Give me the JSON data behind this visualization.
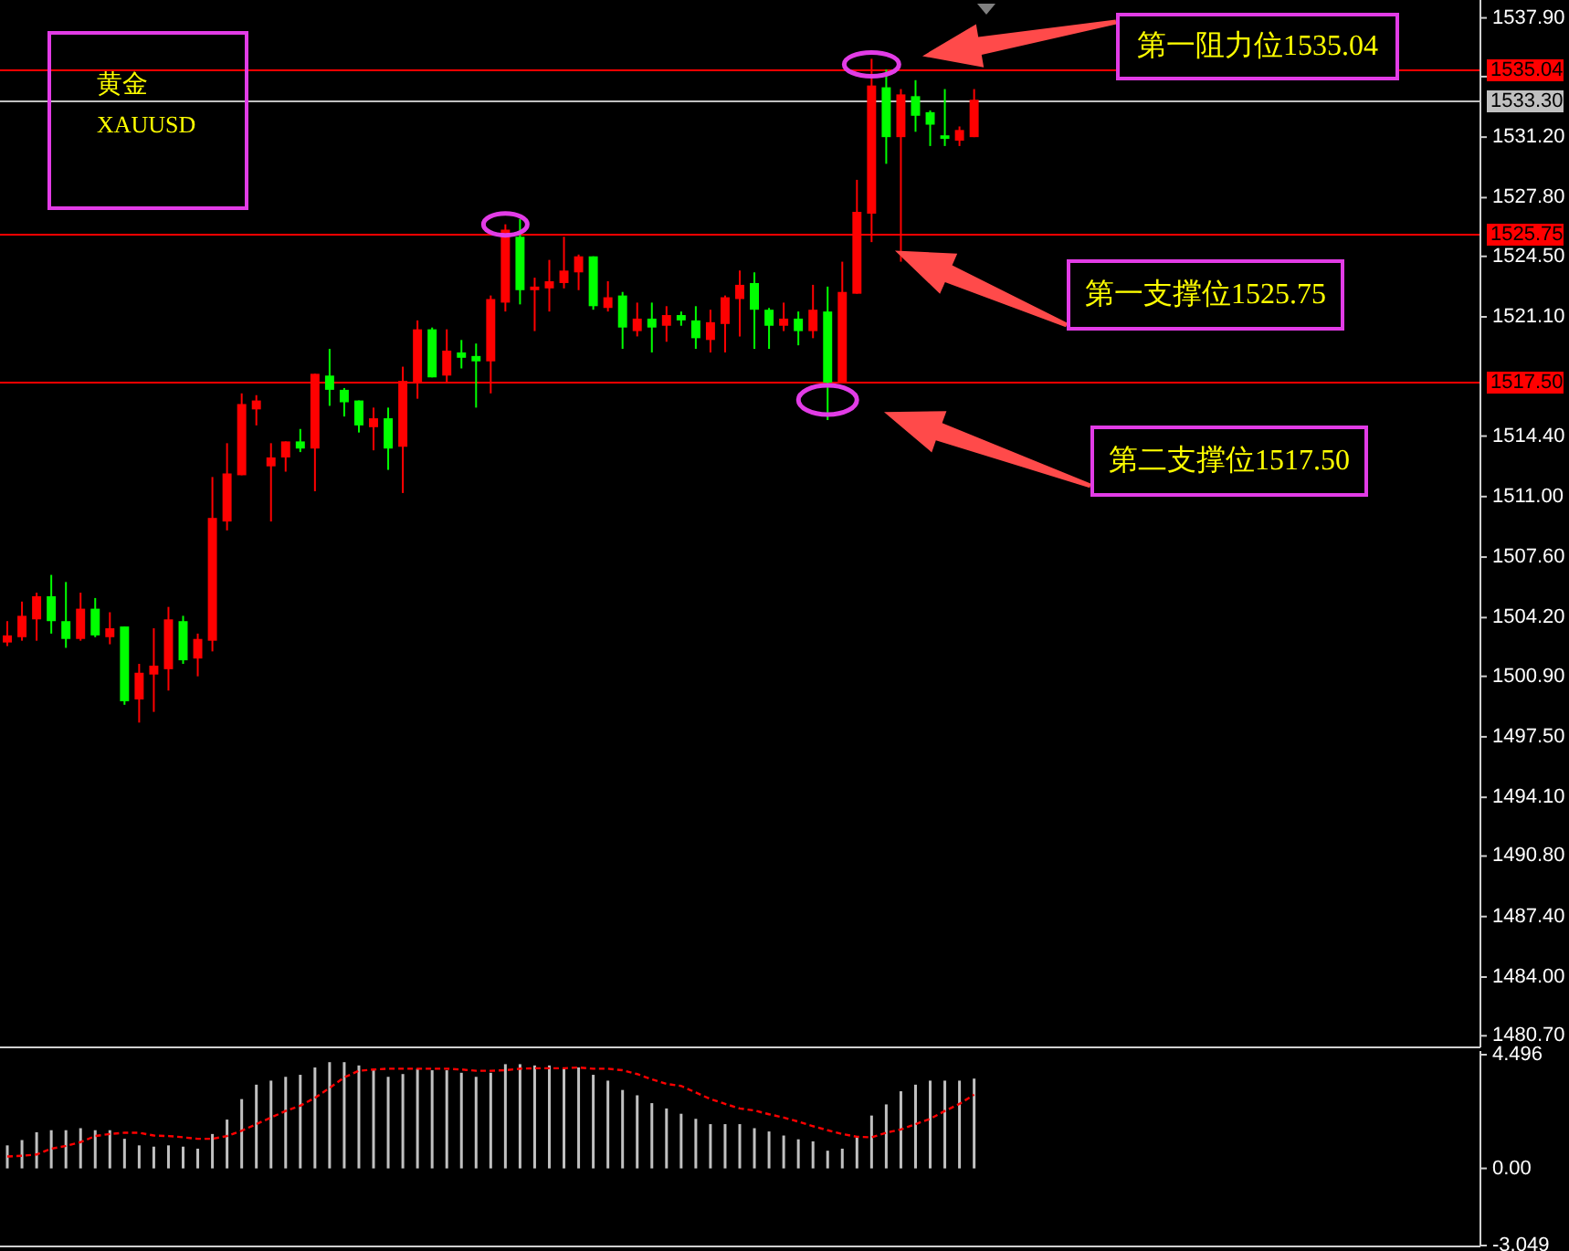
{
  "chart_data": [
    {
      "type": "candlestick",
      "title": "黄金",
      "subtitle": "XAUUSD",
      "categories": [
        null,
        null,
        null,
        null,
        null,
        null,
        null,
        null,
        null,
        null,
        null,
        null,
        null,
        null,
        null,
        null,
        null,
        null,
        null,
        null,
        null,
        null,
        null,
        null,
        null,
        null,
        null,
        null,
        null,
        null,
        null,
        null,
        null,
        null,
        null,
        null,
        null,
        null,
        null,
        null,
        null,
        null,
        null,
        null,
        null,
        null,
        null,
        null,
        null,
        null,
        null,
        null,
        null,
        null,
        null,
        null,
        null,
        null,
        null,
        null,
        null,
        null,
        null,
        null,
        null,
        null,
        null,
        null,
        null,
        null,
        null,
        null,
        null,
        null,
        null,
        null,
        null,
        null,
        null,
        null,
        null,
        null,
        null,
        null,
        null,
        null,
        null,
        null,
        null,
        null,
        null,
        null,
        null,
        null,
        null,
        null,
        null,
        null,
        null,
        null,
        null
      ],
      "ohlc": [
        [
          1502.8,
          1504.0,
          1502.6,
          1503.2
        ],
        [
          1503.1,
          1505.1,
          1502.9,
          1504.3
        ],
        [
          1504.1,
          1505.6,
          1502.9,
          1505.4
        ],
        [
          1505.4,
          1506.6,
          1503.3,
          1504.0
        ],
        [
          1504.0,
          1506.2,
          1502.5,
          1503.0
        ],
        [
          1503.0,
          1505.6,
          1502.9,
          1504.7
        ],
        [
          1504.7,
          1505.3,
          1503.1,
          1503.2
        ],
        [
          1503.1,
          1504.5,
          1502.7,
          1503.6
        ],
        [
          1503.7,
          1503.7,
          1499.3,
          1499.5
        ],
        [
          1499.6,
          1501.6,
          1498.3,
          1501.1
        ],
        [
          1501.0,
          1503.6,
          1498.9,
          1501.5
        ],
        [
          1501.3,
          1504.8,
          1500.1,
          1504.1
        ],
        [
          1504.0,
          1504.3,
          1501.6,
          1501.8
        ],
        [
          1501.9,
          1503.3,
          1500.9,
          1503.0
        ],
        [
          1502.9,
          1512.1,
          1502.3,
          1509.8
        ],
        [
          1509.6,
          1514.0,
          1509.1,
          1512.3
        ],
        [
          1512.2,
          1516.8,
          1512.2,
          1516.2
        ],
        [
          1515.9,
          1516.7,
          1515.0,
          1516.4
        ],
        [
          1512.7,
          1514.0,
          1509.6,
          1513.2
        ],
        [
          1513.2,
          1514.1,
          1512.4,
          1514.1
        ],
        [
          1514.1,
          1514.8,
          1513.5,
          1513.7
        ],
        [
          1513.7,
          1517.9,
          1511.3,
          1517.9
        ],
        [
          1517.8,
          1519.3,
          1516.1,
          1517.0
        ],
        [
          1517.0,
          1517.1,
          1515.5,
          1516.3
        ],
        [
          1516.4,
          1516.4,
          1514.6,
          1515.0
        ],
        [
          1514.9,
          1516.0,
          1513.6,
          1515.4
        ],
        [
          1515.4,
          1516.0,
          1512.5,
          1513.7
        ],
        [
          1513.8,
          1518.3,
          1511.2,
          1517.5
        ],
        [
          1517.4,
          1520.9,
          1516.5,
          1520.4
        ],
        [
          1520.4,
          1520.5,
          1517.7,
          1517.7
        ],
        [
          1517.8,
          1520.4,
          1517.4,
          1519.2
        ],
        [
          1519.1,
          1519.8,
          1518.2,
          1518.8
        ],
        [
          1518.9,
          1519.6,
          1516.0,
          1518.6
        ],
        [
          1518.6,
          1522.3,
          1516.8,
          1522.1
        ],
        [
          1521.9,
          1526.3,
          1521.4,
          1526.0
        ],
        [
          1525.6,
          1526.6,
          1521.8,
          1522.6
        ],
        [
          1522.6,
          1523.3,
          1520.3,
          1522.8
        ],
        [
          1522.7,
          1524.3,
          1521.4,
          1523.1
        ],
        [
          1523.0,
          1525.6,
          1522.7,
          1523.7
        ],
        [
          1523.6,
          1524.6,
          1522.6,
          1524.5
        ],
        [
          1524.5,
          1524.5,
          1521.5,
          1521.7
        ],
        [
          1521.6,
          1523.1,
          1521.4,
          1522.2
        ],
        [
          1522.3,
          1522.5,
          1519.3,
          1520.5
        ],
        [
          1520.3,
          1521.9,
          1520.0,
          1521.0
        ],
        [
          1521.0,
          1521.9,
          1519.1,
          1520.5
        ],
        [
          1520.6,
          1521.7,
          1519.7,
          1521.2
        ],
        [
          1521.2,
          1521.4,
          1520.6,
          1520.9
        ],
        [
          1520.9,
          1521.7,
          1519.3,
          1519.9
        ],
        [
          1519.8,
          1521.5,
          1519.1,
          1520.8
        ],
        [
          1520.7,
          1522.3,
          1519.1,
          1522.2
        ],
        [
          1522.1,
          1523.7,
          1520.0,
          1522.9
        ],
        [
          1523.0,
          1523.6,
          1519.3,
          1521.5
        ],
        [
          1521.5,
          1521.6,
          1519.3,
          1520.6
        ],
        [
          1520.6,
          1521.9,
          1520.3,
          1521.0
        ],
        [
          1521.0,
          1521.4,
          1519.5,
          1520.3
        ],
        [
          1520.3,
          1522.9,
          1519.9,
          1521.5
        ],
        [
          1521.4,
          1522.8,
          1515.3,
          1517.4
        ],
        [
          1517.4,
          1524.2,
          1517.4,
          1522.5
        ],
        [
          1522.4,
          1528.8,
          1522.4,
          1527.0
        ],
        [
          1526.9,
          1535.6,
          1525.3,
          1534.1
        ],
        [
          1534.0,
          1535.0,
          1529.7,
          1531.2
        ],
        [
          1531.2,
          1533.9,
          1524.2,
          1533.6
        ],
        [
          1533.5,
          1534.4,
          1531.5,
          1532.4
        ],
        [
          1532.6,
          1532.7,
          1530.7,
          1531.9
        ],
        [
          1531.3,
          1533.9,
          1530.7,
          1531.1
        ],
        [
          1531.0,
          1531.8,
          1530.7,
          1531.6
        ],
        [
          1531.2,
          1533.9,
          1531.2,
          1533.3
        ],
        null,
        null,
        null,
        null,
        null,
        null,
        null,
        null,
        null,
        null,
        null,
        null,
        null,
        null,
        null,
        null,
        null,
        null,
        null,
        null,
        null,
        null,
        null,
        null,
        null,
        null,
        null,
        null,
        null,
        null,
        null,
        null,
        null,
        null
      ],
      "colors": [
        "#ff0000",
        "#ff0000",
        "#ff0000",
        "#00ff00",
        "#00ff00",
        "#ff0000",
        "#00ff00",
        "#ff0000",
        "#00ff00",
        "#ff0000",
        "#ff0000",
        "#ff0000",
        "#00ff00",
        "#ff0000",
        "#ff0000",
        "#ff0000",
        "#ff0000",
        "#ff0000",
        "#ff0000",
        "#ff0000",
        "#00ff00",
        "#ff0000",
        "#00ff00",
        "#00ff00",
        "#00ff00",
        "#ff0000",
        "#00ff00",
        "#ff0000",
        "#ff0000",
        "#00ff00",
        "#ff0000",
        "#00ff00",
        "#00ff00",
        "#ff0000",
        "#ff0000",
        "#00ff00",
        "#ff0000",
        "#ff0000",
        "#ff0000",
        "#ff0000",
        "#00ff00",
        "#ff0000",
        "#00ff00",
        "#ff0000",
        "#00ff00",
        "#ff0000",
        "#00ff00",
        "#00ff00",
        "#ff0000",
        "#ff0000",
        "#ff0000",
        "#00ff00",
        "#00ff00",
        "#ff0000",
        "#00ff00",
        "#ff0000",
        "#00ff00",
        "#ff0000",
        "#ff0000",
        "#ff0000",
        "#00ff00",
        "#ff0000",
        "#00ff00",
        "#00ff00",
        "#00ff00",
        "#ff0000",
        "#ff0000",
        null,
        null,
        null,
        null,
        null,
        null,
        null,
        null,
        null,
        null,
        null,
        null,
        null,
        null,
        null,
        null,
        null,
        null,
        null,
        null,
        null,
        null,
        null,
        null,
        null,
        null,
        null,
        null,
        null,
        null,
        null,
        null,
        null,
        null
      ],
      "ylim": [
        1480.1,
        1538.7
      ],
      "yticks": [
        {
          "value": 1537.9,
          "label": "1537.90"
        },
        {
          "value": 1534.6,
          "label": null
        },
        {
          "value": 1531.2,
          "label": "1531.20"
        },
        {
          "value": 1527.8,
          "label": "1527.80"
        },
        {
          "value": 1524.5,
          "label": "1524.50"
        },
        {
          "value": 1521.1,
          "label": "1521.10"
        },
        {
          "value": 1514.4,
          "label": "1514.40"
        },
        {
          "value": 1511.0,
          "label": "1511.00"
        },
        {
          "value": 1507.6,
          "label": "1507.60"
        },
        {
          "value": 1504.2,
          "label": "1504.20"
        },
        {
          "value": 1500.9,
          "label": "1500.90"
        },
        {
          "value": 1497.5,
          "label": "1497.50"
        },
        {
          "value": 1494.1,
          "label": "1494.10"
        },
        {
          "value": 1490.8,
          "label": "1490.80"
        },
        {
          "value": 1487.4,
          "label": "1487.40"
        },
        {
          "value": 1484.0,
          "label": "1484.00"
        },
        {
          "value": 1480.7,
          "label": "1480.70"
        }
      ],
      "ref_lines": [
        {
          "axis": "y",
          "value": 1535.04,
          "label": "1535.04",
          "color": "#ff0000"
        },
        {
          "axis": "y",
          "value": 1533.3,
          "label": "1533.30",
          "color": "#c0c0c0"
        },
        {
          "axis": "y",
          "value": 1525.75,
          "label": "1525.75",
          "color": "#ff0000"
        },
        {
          "axis": "y",
          "value": 1517.5,
          "label": "1517.50",
          "color": "#ff0000"
        }
      ],
      "annotations": [
        {
          "text": "第一阻力位1535.04",
          "y": 1535.04
        },
        {
          "text": "第一支撑位1525.75",
          "y": 1525.75
        },
        {
          "text": "第二支撑位1517.50",
          "y": 1517.5
        }
      ]
    },
    {
      "type": "bar",
      "categories": [
        null,
        null,
        null,
        null,
        null,
        null,
        null,
        null,
        null,
        null,
        null,
        null,
        null,
        null,
        null,
        null,
        null,
        null,
        null,
        null,
        null,
        null,
        null,
        null,
        null,
        null,
        null,
        null,
        null,
        null,
        null,
        null,
        null,
        null,
        null,
        null,
        null,
        null,
        null,
        null,
        null,
        null,
        null,
        null,
        null,
        null,
        null,
        null,
        null,
        null,
        null,
        null,
        null,
        null,
        null,
        null,
        null,
        null,
        null,
        null,
        null,
        null,
        null,
        null,
        null,
        null,
        null,
        null,
        null,
        null,
        null,
        null,
        null,
        null,
        null,
        null,
        null,
        null,
        null,
        null,
        null,
        null,
        null,
        null,
        null,
        null,
        null,
        null,
        null,
        null,
        null,
        null,
        null,
        null,
        null,
        null,
        null,
        null,
        null,
        null,
        null
      ],
      "series": [
        {
          "type": "bar",
          "color": "#c0c0c0",
          "values": [
            0.91,
            1.12,
            1.43,
            1.51,
            1.51,
            1.59,
            1.51,
            1.51,
            1.17,
            0.91,
            0.86,
            0.91,
            0.86,
            0.78,
            1.36,
            1.93,
            2.74,
            3.31,
            3.47,
            3.62,
            3.7,
            3.99,
            4.2,
            4.2,
            4.07,
            3.91,
            3.62,
            3.73,
            3.94,
            3.88,
            3.88,
            3.78,
            3.62,
            3.78,
            4.12,
            4.12,
            4.07,
            4.07,
            3.96,
            3.99,
            3.7,
            3.47,
            3.1,
            2.89,
            2.58,
            2.37,
            2.16,
            1.96,
            1.75,
            1.75,
            1.75,
            1.59,
            1.46,
            1.3,
            1.15,
            1.07,
            0.7,
            0.78,
            1.23,
            2.09,
            2.53,
            3.05,
            3.31,
            3.47,
            3.47,
            3.47,
            3.55,
            null,
            null,
            null,
            null,
            null,
            null,
            null,
            null,
            null,
            null,
            null,
            null,
            null,
            null,
            null,
            null,
            null,
            null,
            null,
            null,
            null,
            null,
            null,
            null,
            null,
            null,
            null,
            null,
            null,
            null,
            null,
            null,
            null,
            null
          ]
        },
        {
          "type": "line",
          "color": "#ff0000",
          "line_style": "dashed",
          "values": [
            0.47,
            0.5,
            0.55,
            0.78,
            0.89,
            1.04,
            1.28,
            1.36,
            1.41,
            1.41,
            1.3,
            1.28,
            1.23,
            1.17,
            1.17,
            1.28,
            1.49,
            1.75,
            2.01,
            2.27,
            2.48,
            2.79,
            3.18,
            3.6,
            3.86,
            3.91,
            3.94,
            3.94,
            3.94,
            3.94,
            3.94,
            3.91,
            3.86,
            3.86,
            3.88,
            3.94,
            3.96,
            3.96,
            3.96,
            3.99,
            3.94,
            3.94,
            3.88,
            3.73,
            3.52,
            3.34,
            3.26,
            3.0,
            2.74,
            2.55,
            2.37,
            2.29,
            2.14,
            2.01,
            1.85,
            1.67,
            1.51,
            1.36,
            1.25,
            1.23,
            1.41,
            1.54,
            1.75,
            1.96,
            2.27,
            2.55,
            2.92,
            null,
            null,
            null,
            null,
            null,
            null,
            null,
            null,
            null,
            null,
            null,
            null,
            null,
            null,
            null,
            null,
            null,
            null,
            null,
            null,
            null,
            null,
            null,
            null,
            null,
            null,
            null,
            null,
            null,
            null,
            null,
            null,
            null,
            null
          ]
        }
      ],
      "ylim": [
        -3.049,
        4.496
      ],
      "yticks": [
        4.496,
        {
          "value": 0,
          "label": "0.00"
        },
        -3.049
      ]
    }
  ]
}
